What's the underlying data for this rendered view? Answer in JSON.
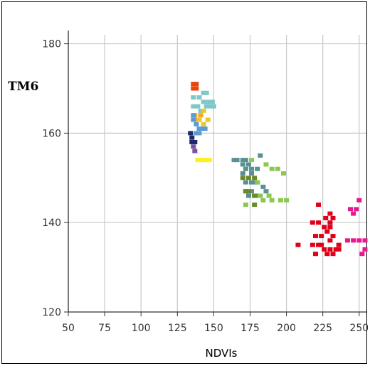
{
  "chart_data": {
    "type": "scatter",
    "title": "",
    "xlabel": "NDVIs",
    "ylabel": "TM6",
    "xlim": [
      50,
      255
    ],
    "ylim": [
      120,
      182
    ],
    "xticks": [
      50,
      75,
      100,
      125,
      150,
      175,
      200,
      225,
      250
    ],
    "yticks": [
      120,
      140,
      160,
      180
    ],
    "grid": true,
    "legend": "none",
    "marker": "square",
    "series": [
      {
        "color": "#e8450a",
        "points": [
          [
            136,
            171
          ],
          [
            138,
            171
          ],
          [
            136,
            170
          ],
          [
            138,
            170
          ]
        ]
      },
      {
        "color": "#7fc8c8",
        "points": [
          [
            136,
            168
          ],
          [
            140,
            168
          ],
          [
            143,
            169
          ],
          [
            145,
            169
          ],
          [
            143,
            167
          ],
          [
            146,
            167
          ],
          [
            149,
            167
          ],
          [
            145,
            166
          ],
          [
            148,
            166
          ],
          [
            150,
            166
          ],
          [
            136,
            166
          ],
          [
            141,
            165
          ],
          [
            139,
            166
          ]
        ]
      },
      {
        "color": "#f5a623",
        "points": [
          [
            137,
            164
          ],
          [
            139,
            163
          ],
          [
            141,
            164
          ]
        ]
      },
      {
        "color": "#e8c82a",
        "points": [
          [
            140,
            163
          ],
          [
            143,
            162
          ],
          [
            146,
            163
          ],
          [
            143,
            165
          ]
        ]
      },
      {
        "color": "#5b9bd5",
        "points": [
          [
            136,
            163
          ],
          [
            138,
            162
          ],
          [
            140,
            161
          ],
          [
            142,
            161
          ],
          [
            144,
            161
          ],
          [
            138,
            160
          ],
          [
            140,
            160
          ],
          [
            136,
            164
          ]
        ]
      },
      {
        "color": "#1c2a6b",
        "points": [
          [
            134,
            160
          ],
          [
            135,
            159
          ],
          [
            137,
            158
          ],
          [
            135,
            158
          ]
        ]
      },
      {
        "color": "#7b52a0",
        "points": [
          [
            136,
            157
          ],
          [
            137,
            156
          ]
        ]
      },
      {
        "color": "#ffef20",
        "points": [
          [
            139,
            154
          ],
          [
            141,
            154
          ],
          [
            143,
            154
          ],
          [
            145,
            154
          ],
          [
            147,
            154
          ]
        ]
      },
      {
        "color": "#5a9090",
        "points": [
          [
            164,
            154
          ],
          [
            166,
            154
          ],
          [
            170,
            154
          ],
          [
            172,
            154
          ],
          [
            170,
            153
          ],
          [
            174,
            153
          ],
          [
            172,
            152
          ],
          [
            176,
            152
          ],
          [
            170,
            151
          ],
          [
            176,
            151
          ],
          [
            180,
            152
          ],
          [
            182,
            155
          ],
          [
            176,
            149
          ],
          [
            178,
            149
          ],
          [
            172,
            149
          ],
          [
            180,
            149
          ],
          [
            184,
            148
          ],
          [
            186,
            147
          ],
          [
            180,
            146
          ],
          [
            174,
            146
          ],
          [
            176,
            147
          ],
          [
            172,
            147
          ]
        ]
      },
      {
        "color": "#6a8a2a",
        "points": [
          [
            170,
            150
          ],
          [
            174,
            150
          ],
          [
            178,
            150
          ],
          [
            172,
            147
          ],
          [
            174,
            147
          ],
          [
            178,
            146
          ],
          [
            178,
            144
          ]
        ]
      },
      {
        "color": "#8cc850",
        "points": [
          [
            180,
            149
          ],
          [
            182,
            146
          ],
          [
            188,
            146
          ],
          [
            184,
            145
          ],
          [
            190,
            145
          ],
          [
            196,
            145
          ],
          [
            200,
            145
          ],
          [
            186,
            153
          ],
          [
            190,
            152
          ],
          [
            194,
            152
          ],
          [
            198,
            151
          ],
          [
            176,
            154
          ],
          [
            172,
            144
          ]
        ]
      },
      {
        "color": "#e0001a",
        "points": [
          [
            208,
            135
          ],
          [
            222,
            144
          ],
          [
            227,
            141
          ],
          [
            230,
            142
          ],
          [
            232,
            141
          ],
          [
            218,
            140
          ],
          [
            222,
            140
          ],
          [
            230,
            140
          ],
          [
            226,
            139
          ],
          [
            228,
            138
          ],
          [
            224,
            137
          ],
          [
            220,
            137
          ],
          [
            232,
            137
          ],
          [
            230,
            136
          ],
          [
            218,
            135
          ],
          [
            222,
            135
          ],
          [
            224,
            135
          ],
          [
            226,
            134
          ],
          [
            230,
            134
          ],
          [
            234,
            134
          ],
          [
            236,
            134
          ],
          [
            236,
            135
          ],
          [
            228,
            133
          ],
          [
            232,
            133
          ],
          [
            220,
            133
          ],
          [
            230,
            139
          ]
        ]
      },
      {
        "color": "#e8198c",
        "points": [
          [
            244,
            143
          ],
          [
            248,
            143
          ],
          [
            250,
            145
          ],
          [
            246,
            142
          ],
          [
            242,
            136
          ],
          [
            246,
            136
          ],
          [
            250,
            136
          ],
          [
            254,
            136
          ],
          [
            252,
            133
          ],
          [
            254,
            134
          ]
        ]
      }
    ]
  }
}
